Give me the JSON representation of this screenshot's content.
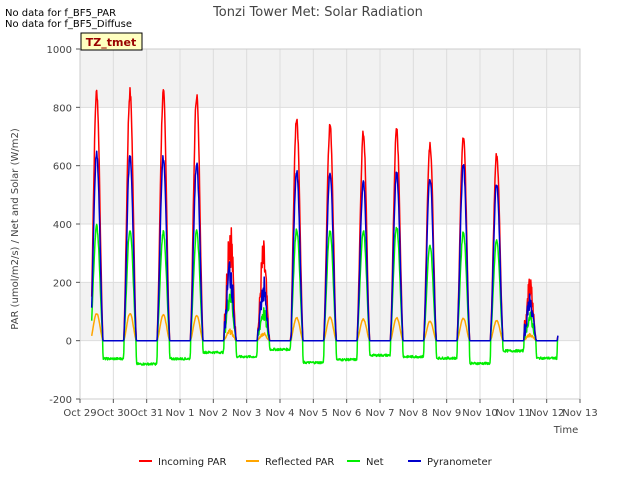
{
  "notes": [
    "No data for f_BF5_PAR",
    "No data for f_BF5_Diffuse"
  ],
  "chart_data": {
    "type": "line",
    "title": "Tonzi Tower Met: Solar Radiation",
    "xlabel": "Time",
    "ylabel": "PAR (umol/m2/s) / Net and Solar (W/m2)",
    "site_badge": "TZ_tmet",
    "xlim": [
      0,
      15
    ],
    "ylim": [
      -200,
      1000
    ],
    "yticks": [
      -200,
      0,
      200,
      400,
      600,
      800,
      1000
    ],
    "xticks": [
      {
        "value": 0,
        "label": "Oct 29"
      },
      {
        "value": 1,
        "label": "Oct 30"
      },
      {
        "value": 2,
        "label": "Oct 31"
      },
      {
        "value": 3,
        "label": "Nov 1"
      },
      {
        "value": 4,
        "label": "Nov 2"
      },
      {
        "value": 5,
        "label": "Nov 3"
      },
      {
        "value": 6,
        "label": "Nov 4"
      },
      {
        "value": 7,
        "label": "Nov 5"
      },
      {
        "value": 8,
        "label": "Nov 6"
      },
      {
        "value": 9,
        "label": "Nov 7"
      },
      {
        "value": 10,
        "label": "Nov 8"
      },
      {
        "value": 11,
        "label": "Nov 9"
      },
      {
        "value": 12,
        "label": "Nov 10"
      },
      {
        "value": 13,
        "label": "Nov 11"
      },
      {
        "value": 14,
        "label": "Nov 12"
      },
      {
        "value": 15,
        "label": "Nov 13"
      }
    ],
    "grid": true,
    "legend_position": "bottom",
    "days_start": 0.35,
    "series": [
      {
        "name": "Incoming PAR",
        "color": "#ff0000",
        "peaks": [
          870,
          870,
          865,
          860,
          470,
          350,
          780,
          755,
          725,
          735,
          690,
          720,
          650,
          225
        ],
        "night": 0
      },
      {
        "name": "Reflected PAR",
        "color": "#ffa500",
        "peaks": [
          95,
          95,
          90,
          88,
          40,
          30,
          80,
          82,
          75,
          80,
          68,
          78,
          70,
          25
        ],
        "night": 0
      },
      {
        "name": "Net",
        "color": "#00ee00",
        "peaks": [
          400,
          390,
          380,
          380,
          205,
          120,
          390,
          385,
          385,
          400,
          330,
          380,
          350,
          100
        ],
        "night": [
          -62,
          -80,
          -62,
          -40,
          -55,
          -30,
          -75,
          -65,
          -50,
          -55,
          -60,
          -78,
          -35,
          -60
        ]
      },
      {
        "name": "Pyranometer",
        "color": "#0000cc",
        "peaks": [
          650,
          645,
          640,
          615,
          310,
          230,
          590,
          585,
          555,
          585,
          570,
          610,
          545,
          170
        ],
        "night": 0
      }
    ]
  }
}
